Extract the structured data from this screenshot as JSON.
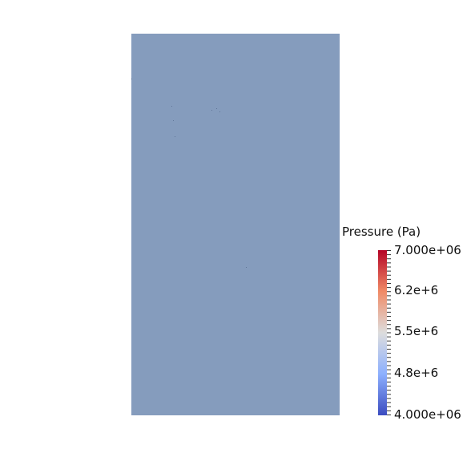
{
  "field": {
    "fill_color": "#859cbd"
  },
  "scalar_bar": {
    "title": "Pressure (Pa)",
    "max_label": "7.000e+06",
    "labels": [
      "6.2e+6",
      "5.5e+6",
      "4.8e+6"
    ],
    "min_label": "4.000e+06",
    "colormap": "cool-to-warm",
    "colors": {
      "top": "#b40426",
      "upper": "#f08a66",
      "mid": "#dddddd",
      "lower": "#8db0fe",
      "bottom": "#3b4cc0"
    }
  }
}
